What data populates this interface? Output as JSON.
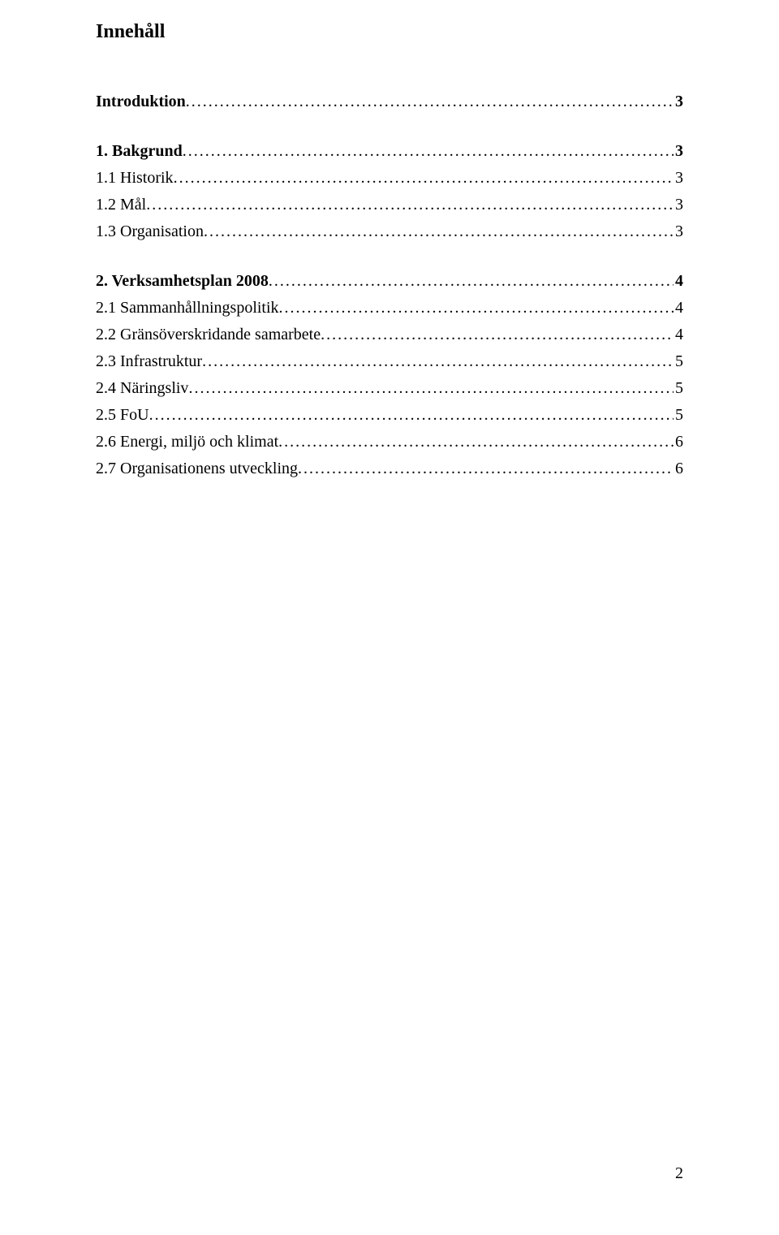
{
  "title": "Innehåll",
  "toc": [
    {
      "label": "Introduktion",
      "page": "3",
      "bold": true,
      "gap_before": false
    },
    {
      "label": "1. Bakgrund",
      "page": "3",
      "bold": true,
      "gap_before": true
    },
    {
      "label": "1.1 Historik",
      "page": "3",
      "bold": false,
      "gap_before": false
    },
    {
      "label": "1.2 Mål",
      "page": "3",
      "bold": false,
      "gap_before": false
    },
    {
      "label": "1.3 Organisation",
      "page": " 3",
      "bold": false,
      "gap_before": false
    },
    {
      "label": "2. Verksamhetsplan 2008",
      "page": " 4",
      "bold": true,
      "gap_before": true
    },
    {
      "label": "2.1 Sammanhållningspolitik",
      "page": "4",
      "bold": false,
      "gap_before": false
    },
    {
      "label": "2.2 Gränsöverskridande samarbete",
      "page": "4",
      "bold": false,
      "gap_before": false
    },
    {
      "label": "2.3 Infrastruktur",
      "page": "5",
      "bold": false,
      "gap_before": false
    },
    {
      "label": "2.4 Näringsliv",
      "page": "5",
      "bold": false,
      "gap_before": false
    },
    {
      "label": "2.5 FoU",
      "page": "5",
      "bold": false,
      "gap_before": false
    },
    {
      "label": "2.6 Energi, miljö och klimat",
      "page": "6",
      "bold": false,
      "gap_before": false
    },
    {
      "label": "2.7 Organisationens utveckling",
      "page": "6",
      "bold": false,
      "gap_before": false
    }
  ],
  "footer_page_number": "2"
}
